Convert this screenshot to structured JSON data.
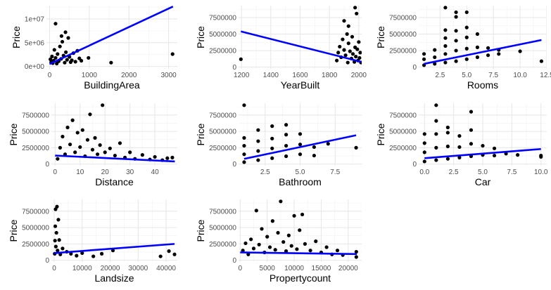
{
  "chart_data": [
    {
      "type": "scatter",
      "xlabel": "BuildingArea",
      "ylabel": "Price",
      "xlim": [
        -80,
        3220
      ],
      "ylim": [
        -500000,
        12800000
      ],
      "xticks": [
        0,
        1000,
        2000,
        3000
      ],
      "xtick_labels": [
        "0",
        "1000",
        "2000",
        "3000"
      ],
      "yticks": [
        0,
        5000000,
        10000000
      ],
      "ytick_labels": [
        "0e+00",
        "5e+06",
        "1e+07"
      ],
      "grid": true,
      "points": [
        [
          20,
          1500000
        ],
        [
          40,
          900000
        ],
        [
          60,
          2100000
        ],
        [
          80,
          700000
        ],
        [
          100,
          1200000
        ],
        [
          120,
          3500000
        ],
        [
          150,
          1800000
        ],
        [
          180,
          600000
        ],
        [
          200,
          2600000
        ],
        [
          230,
          1100000
        ],
        [
          260,
          4200000
        ],
        [
          290,
          1600000
        ],
        [
          320,
          5200000
        ],
        [
          350,
          2300000
        ],
        [
          380,
          800000
        ],
        [
          410,
          3000000
        ],
        [
          440,
          1400000
        ],
        [
          470,
          6000000
        ],
        [
          500,
          2000000
        ],
        [
          530,
          900000
        ],
        [
          560,
          1300000
        ],
        [
          600,
          2800000
        ],
        [
          650,
          1000000
        ],
        [
          700,
          3300000
        ],
        [
          750,
          1700000
        ],
        [
          800,
          1200000
        ],
        [
          150,
          9000000
        ],
        [
          400,
          7200000
        ],
        [
          300,
          6400000
        ],
        [
          980,
          1800000
        ],
        [
          1550,
          800000
        ],
        [
          3100,
          2600000
        ]
      ],
      "fit_line": [
        [
          0,
          500000
        ],
        [
          3110,
          12600000
        ]
      ]
    },
    {
      "type": "scatter",
      "xlabel": "YearBuilt",
      "ylabel": "Price",
      "xlim": [
        1180,
        2020
      ],
      "ylim": [
        -250000,
        9300000
      ],
      "xticks": [
        1200,
        1400,
        1600,
        1800,
        2000
      ],
      "xtick_labels": [
        "1200",
        "1400",
        "1600",
        "1800",
        "2000"
      ],
      "yticks": [
        0,
        2500000,
        5000000,
        7500000
      ],
      "ytick_labels": [
        "0",
        "2500000",
        "5000000",
        "7500000"
      ],
      "grid": true,
      "points": [
        [
          1196,
          1200000
        ],
        [
          1850,
          1000000
        ],
        [
          1860,
          2200000
        ],
        [
          1870,
          3100000
        ],
        [
          1880,
          1500000
        ],
        [
          1890,
          4200000
        ],
        [
          1900,
          2600000
        ],
        [
          1910,
          1800000
        ],
        [
          1920,
          5000000
        ],
        [
          1925,
          700000
        ],
        [
          1930,
          3600000
        ],
        [
          1940,
          2400000
        ],
        [
          1950,
          1300000
        ],
        [
          1955,
          4600000
        ],
        [
          1960,
          2000000
        ],
        [
          1970,
          800000
        ],
        [
          1975,
          3000000
        ],
        [
          1980,
          1600000
        ],
        [
          1990,
          2700000
        ],
        [
          1995,
          1000000
        ],
        [
          2000,
          3800000
        ],
        [
          2005,
          1400000
        ],
        [
          2010,
          2200000
        ],
        [
          2015,
          700000
        ],
        [
          1900,
          7000000
        ],
        [
          1930,
          6200000
        ],
        [
          1975,
          9000000
        ],
        [
          1985,
          8100000
        ]
      ],
      "fit_line": [
        [
          1196,
          5400000
        ],
        [
          2018,
          800000
        ]
      ]
    },
    {
      "type": "scatter",
      "xlabel": "Rooms",
      "ylabel": "Price",
      "xlim": [
        0.5,
        12.5
      ],
      "ylim": [
        -250000,
        9300000
      ],
      "xticks": [
        2.5,
        5.0,
        7.5,
        10.0,
        12.5
      ],
      "xtick_labels": [
        "2.5",
        "5.0",
        "7.5",
        "10.0",
        "12.5"
      ],
      "yticks": [
        0,
        2500000,
        5000000,
        7500000
      ],
      "ytick_labels": [
        "0",
        "2500000",
        "5000000",
        "7500000"
      ],
      "grid": true,
      "points": [
        [
          1,
          300000
        ],
        [
          1,
          1200000
        ],
        [
          1,
          2000000
        ],
        [
          2,
          500000
        ],
        [
          2,
          1500000
        ],
        [
          2,
          2600000
        ],
        [
          3,
          700000
        ],
        [
          3,
          2000000
        ],
        [
          3,
          3200000
        ],
        [
          3,
          4400000
        ],
        [
          3,
          5600000
        ],
        [
          3,
          9000000
        ],
        [
          4,
          900000
        ],
        [
          4,
          2500000
        ],
        [
          4,
          4000000
        ],
        [
          4,
          5500000
        ],
        [
          4,
          7600000
        ],
        [
          4,
          8300000
        ],
        [
          5,
          1200000
        ],
        [
          5,
          2800000
        ],
        [
          5,
          4500000
        ],
        [
          5,
          6000000
        ],
        [
          5,
          8300000
        ],
        [
          6,
          1500000
        ],
        [
          6,
          3000000
        ],
        [
          6,
          5000000
        ],
        [
          7,
          1800000
        ],
        [
          7,
          2900000
        ],
        [
          8,
          2000000
        ],
        [
          8,
          2600000
        ],
        [
          10,
          2400000
        ],
        [
          12,
          900000
        ]
      ],
      "fit_line": [
        [
          1,
          500000
        ],
        [
          12,
          4100000
        ]
      ]
    },
    {
      "type": "scatter",
      "xlabel": "Distance",
      "ylabel": "Price",
      "xlim": [
        -1.5,
        49
      ],
      "ylim": [
        -250000,
        9300000
      ],
      "xticks": [
        0,
        10,
        20,
        30,
        40
      ],
      "xtick_labels": [
        "0",
        "10",
        "20",
        "30",
        "40"
      ],
      "yticks": [
        0,
        2500000,
        5000000,
        7500000
      ],
      "ytick_labels": [
        "0",
        "2500000",
        "5000000",
        "7500000"
      ],
      "grid": true,
      "points": [
        [
          1,
          800000
        ],
        [
          2,
          2500000
        ],
        [
          3,
          4200000
        ],
        [
          4,
          1500000
        ],
        [
          5,
          5600000
        ],
        [
          6,
          3000000
        ],
        [
          7,
          6700000
        ],
        [
          8,
          1800000
        ],
        [
          9,
          4800000
        ],
        [
          10,
          2600000
        ],
        [
          11,
          5200000
        ],
        [
          12,
          1200000
        ],
        [
          13,
          3700000
        ],
        [
          14,
          7600000
        ],
        [
          15,
          2200000
        ],
        [
          16,
          4000000
        ],
        [
          17,
          1500000
        ],
        [
          18,
          2900000
        ],
        [
          19,
          9000000
        ],
        [
          20,
          1800000
        ],
        [
          22,
          2400000
        ],
        [
          24,
          1300000
        ],
        [
          26,
          3200000
        ],
        [
          28,
          1000000
        ],
        [
          30,
          1800000
        ],
        [
          32,
          800000
        ],
        [
          35,
          1400000
        ],
        [
          38,
          700000
        ],
        [
          40,
          1100000
        ],
        [
          43,
          600000
        ],
        [
          45,
          900000
        ],
        [
          47,
          1000000
        ]
      ],
      "fit_line": [
        [
          0,
          1300000
        ],
        [
          48,
          400000
        ]
      ]
    },
    {
      "type": "scatter",
      "xlabel": "Bathroom",
      "ylabel": "Price",
      "xlim": [
        0.6,
        9.4
      ],
      "ylim": [
        -250000,
        9300000
      ],
      "xticks": [
        2.5,
        5.0,
        7.5
      ],
      "xtick_labels": [
        "2.5",
        "5.0",
        "7.5"
      ],
      "yticks": [
        0,
        2500000,
        5000000,
        7500000
      ],
      "ytick_labels": [
        "0",
        "2500000",
        "5000000",
        "7500000"
      ],
      "grid": true,
      "points": [
        [
          1,
          300000
        ],
        [
          1,
          1500000
        ],
        [
          1,
          2800000
        ],
        [
          1,
          4000000
        ],
        [
          1,
          9000000
        ],
        [
          2,
          600000
        ],
        [
          2,
          2000000
        ],
        [
          2,
          3500000
        ],
        [
          2,
          5200000
        ],
        [
          3,
          900000
        ],
        [
          3,
          2400000
        ],
        [
          3,
          3900000
        ],
        [
          3,
          5800000
        ],
        [
          4,
          1200000
        ],
        [
          4,
          2800000
        ],
        [
          4,
          4500000
        ],
        [
          4,
          6000000
        ],
        [
          5,
          1500000
        ],
        [
          5,
          3000000
        ],
        [
          5,
          4600000
        ],
        [
          6,
          1300000
        ],
        [
          6,
          2600000
        ],
        [
          7,
          3100000
        ],
        [
          9,
          2500000
        ]
      ],
      "fit_line": [
        [
          1,
          800000
        ],
        [
          9,
          4400000
        ]
      ]
    },
    {
      "type": "scatter",
      "xlabel": "Car",
      "ylabel": "Price",
      "xlim": [
        -0.5,
        10.5
      ],
      "ylim": [
        -250000,
        9300000
      ],
      "xticks": [
        0.0,
        2.5,
        5.0,
        7.5,
        10.0
      ],
      "xtick_labels": [
        "0.0",
        "2.5",
        "5.0",
        "7.5",
        "10.0"
      ],
      "yticks": [
        0,
        2500000,
        5000000,
        7500000
      ],
      "ytick_labels": [
        "0",
        "2500000",
        "5000000",
        "7500000"
      ],
      "grid": true,
      "points": [
        [
          0,
          400000
        ],
        [
          0,
          1800000
        ],
        [
          0,
          3200000
        ],
        [
          0,
          4600000
        ],
        [
          1,
          600000
        ],
        [
          1,
          2500000
        ],
        [
          1,
          4600000
        ],
        [
          1,
          6600000
        ],
        [
          1,
          9000000
        ],
        [
          2,
          800000
        ],
        [
          2,
          2700000
        ],
        [
          2,
          4800000
        ],
        [
          2,
          5600000
        ],
        [
          3,
          1000000
        ],
        [
          3,
          2600000
        ],
        [
          3,
          4300000
        ],
        [
          4,
          1200000
        ],
        [
          4,
          3100000
        ],
        [
          4,
          5200000
        ],
        [
          4,
          8000000
        ],
        [
          5,
          1400000
        ],
        [
          5,
          2800000
        ],
        [
          6,
          1300000
        ],
        [
          6,
          2400000
        ],
        [
          7,
          1600000
        ],
        [
          8,
          1400000
        ],
        [
          10,
          1100000
        ],
        [
          10,
          1300000
        ]
      ],
      "fit_line": [
        [
          0,
          900000
        ],
        [
          10,
          2300000
        ]
      ]
    },
    {
      "type": "scatter",
      "xlabel": "Landsize",
      "ylabel": "Price",
      "xlim": [
        -1000,
        44000
      ],
      "ylim": [
        -250000,
        9300000
      ],
      "xticks": [
        0,
        10000,
        20000,
        30000,
        40000
      ],
      "xtick_labels": [
        "0",
        "10000",
        "20000",
        "30000",
        "40000"
      ],
      "yticks": [
        0,
        2500000,
        5000000,
        7500000
      ],
      "ytick_labels": [
        "0",
        "2500000",
        "5000000",
        "7500000"
      ],
      "grid": true,
      "points": [
        [
          200,
          1000000
        ],
        [
          300,
          3000000
        ],
        [
          400,
          5200000
        ],
        [
          500,
          7800000
        ],
        [
          600,
          2100000
        ],
        [
          800,
          4200000
        ],
        [
          1000,
          8200000
        ],
        [
          1200,
          1500000
        ],
        [
          1500,
          6200000
        ],
        [
          1800,
          3100000
        ],
        [
          2200,
          900000
        ],
        [
          3000,
          1800000
        ],
        [
          4500,
          1300000
        ],
        [
          6000,
          1000000
        ],
        [
          8000,
          700000
        ],
        [
          10000,
          1100000
        ],
        [
          14000,
          600000
        ],
        [
          17000,
          1000000
        ],
        [
          21000,
          1500000
        ],
        [
          38000,
          600000
        ],
        [
          41000,
          1400000
        ],
        [
          43000,
          900000
        ]
      ],
      "fit_line": [
        [
          0,
          1100000
        ],
        [
          43000,
          2500000
        ]
      ]
    },
    {
      "type": "scatter",
      "xlabel": "Propertycount",
      "ylabel": "Price",
      "xlim": [
        -300,
        22500
      ],
      "ylim": [
        -250000,
        9300000
      ],
      "xticks": [
        0,
        5000,
        10000,
        15000,
        20000
      ],
      "xtick_labels": [
        "0",
        "5000",
        "10000",
        "15000",
        "20000"
      ],
      "yticks": [
        0,
        2500000,
        5000000,
        7500000
      ],
      "ytick_labels": [
        "0",
        "2500000",
        "5000000",
        "7500000"
      ],
      "grid": true,
      "points": [
        [
          500,
          1500000
        ],
        [
          1000,
          2600000
        ],
        [
          1500,
          900000
        ],
        [
          2000,
          3200000
        ],
        [
          2500,
          1800000
        ],
        [
          3000,
          7600000
        ],
        [
          3500,
          2400000
        ],
        [
          4000,
          4800000
        ],
        [
          4500,
          1200000
        ],
        [
          5000,
          3600000
        ],
        [
          5500,
          2000000
        ],
        [
          6000,
          6000000
        ],
        [
          6500,
          1600000
        ],
        [
          7000,
          4200000
        ],
        [
          7500,
          9000000
        ],
        [
          8000,
          2800000
        ],
        [
          8500,
          1400000
        ],
        [
          9000,
          3800000
        ],
        [
          9500,
          2200000
        ],
        [
          10000,
          6800000
        ],
        [
          10500,
          1700000
        ],
        [
          11000,
          4600000
        ],
        [
          11500,
          7000000
        ],
        [
          12000,
          2500000
        ],
        [
          13000,
          1500000
        ],
        [
          14000,
          2900000
        ],
        [
          15000,
          1200000
        ],
        [
          16000,
          2000000
        ],
        [
          17000,
          900000
        ],
        [
          18000,
          1500000
        ],
        [
          19000,
          800000
        ],
        [
          21500,
          1300000
        ],
        [
          21500,
          500000
        ]
      ],
      "fit_line": [
        [
          0,
          1200000
        ],
        [
          21600,
          950000
        ]
      ]
    }
  ]
}
